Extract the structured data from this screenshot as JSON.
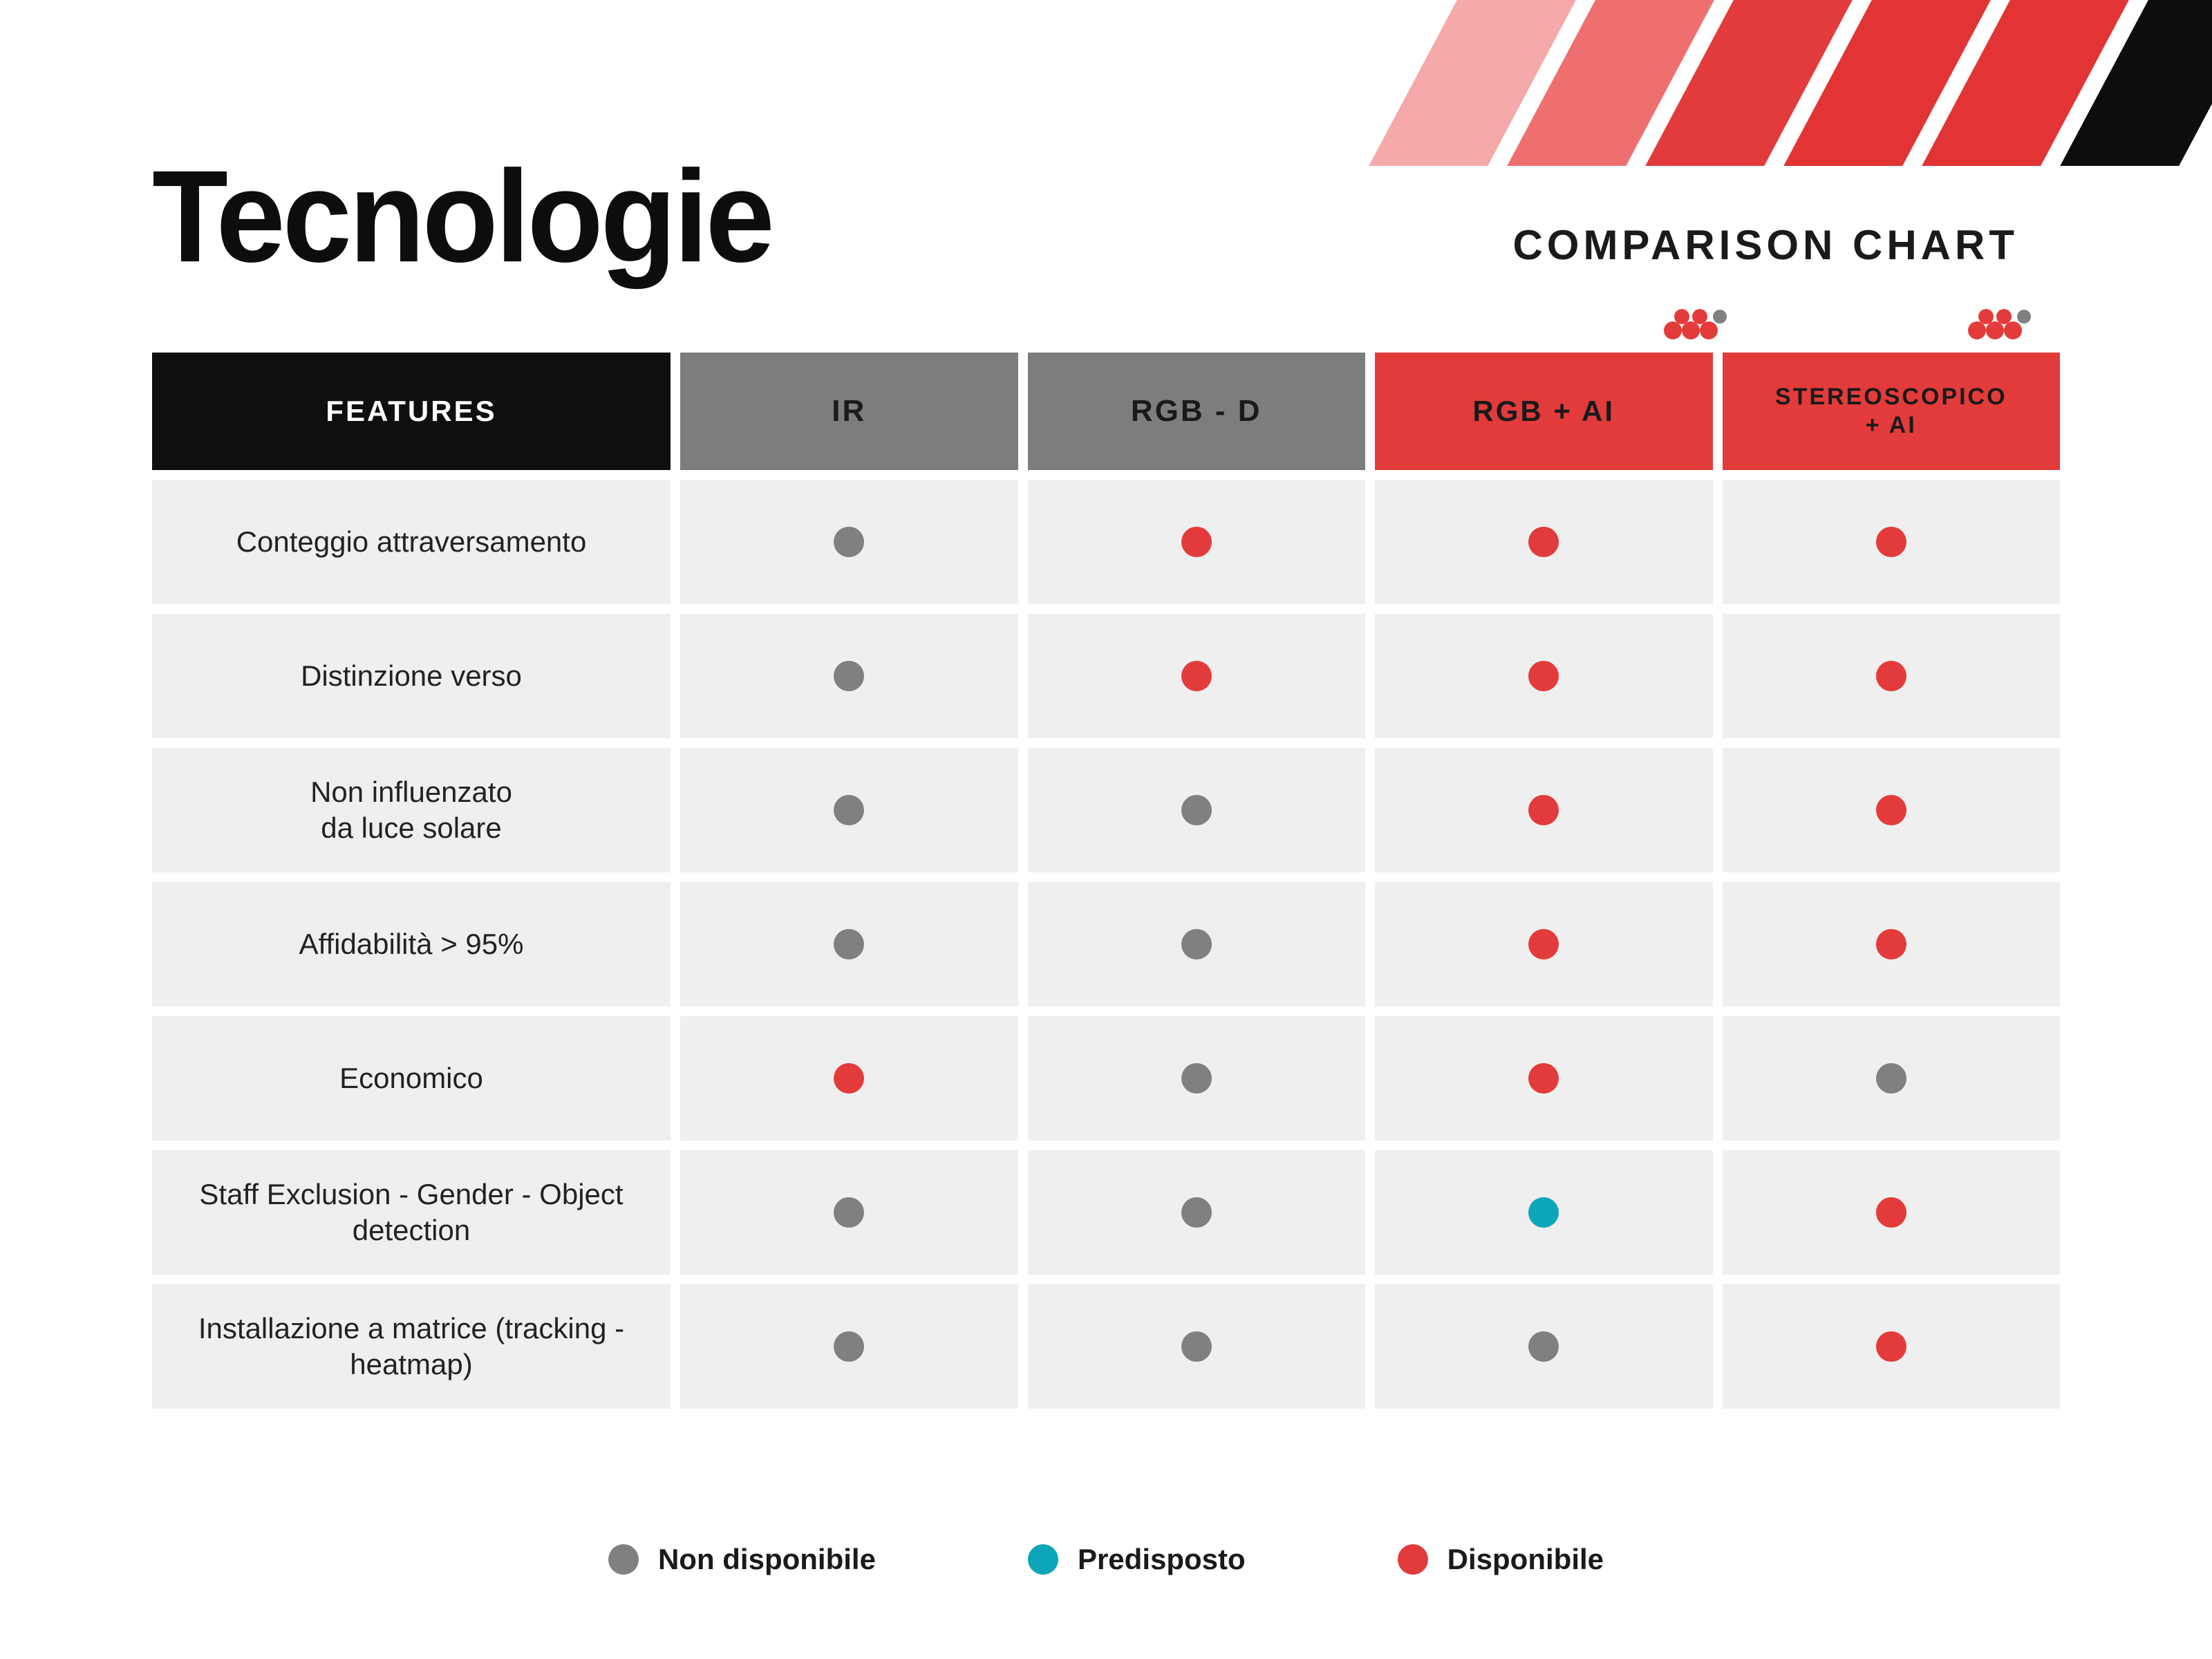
{
  "colors": {
    "red": "#e33b3b",
    "red_light": "#ef6f6f",
    "red_faint": "#f5a9a9",
    "gray": "#7d7d7d",
    "gray_dot": "#808080",
    "teal": "#0da6b8",
    "black": "#0d0d0d",
    "cell_bg": "#efefef",
    "white": "#ffffff"
  },
  "stripes": [
    "#f5a9a9",
    "#ef6f6f",
    "#e33b3b",
    "#e23434",
    "#e23434",
    "#0d0d0d"
  ],
  "title": "Tecnologie",
  "subtitle": "COMPARISON CHART",
  "table": {
    "header_features": "FEATURES",
    "columns": [
      {
        "label": "IR",
        "style": "gray"
      },
      {
        "label": "RGB - D",
        "style": "gray"
      },
      {
        "label": "RGB + AI",
        "style": "red",
        "badge": true
      },
      {
        "label": "STEREOSCOPICO + AI",
        "style": "red small",
        "badge": true
      }
    ],
    "rows": [
      {
        "feature": "Conteggio attraversamento",
        "cells": [
          "na",
          "av",
          "av",
          "av"
        ]
      },
      {
        "feature": "Distinzione verso",
        "cells": [
          "na",
          "av",
          "av",
          "av"
        ]
      },
      {
        "feature": "Non influenzato\nda luce solare",
        "cells": [
          "na",
          "na",
          "av",
          "av"
        ]
      },
      {
        "feature": "Affidabilità > 95%",
        "cells": [
          "na",
          "na",
          "av",
          "av"
        ]
      },
      {
        "feature": "Economico",
        "cells": [
          "av",
          "na",
          "av",
          "na"
        ]
      },
      {
        "feature": "Staff Exclusion - Gender - Object detection",
        "cells": [
          "na",
          "na",
          "pr",
          "av"
        ]
      },
      {
        "feature": "Installazione a matrice (tracking - heatmap)",
        "cells": [
          "na",
          "na",
          "na",
          "av"
        ]
      }
    ],
    "status_colors": {
      "na": "#808080",
      "pr": "#0da6b8",
      "av": "#e33b3b"
    }
  },
  "legend": [
    {
      "key": "na",
      "label": "Non disponibile"
    },
    {
      "key": "pr",
      "label": "Predisposto"
    },
    {
      "key": "av",
      "label": "Disponibile"
    }
  ]
}
